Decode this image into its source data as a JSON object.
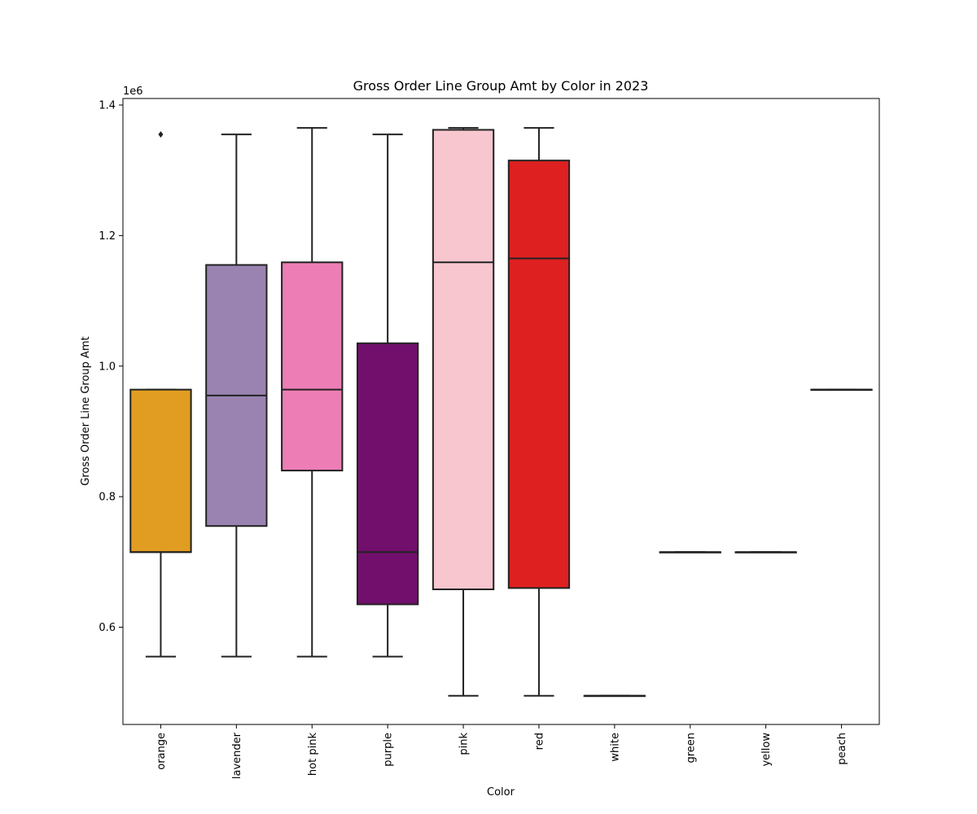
{
  "chart_data": {
    "type": "box",
    "title": "Gross Order Line Group Amt by Color in 2023",
    "xlabel": "Color",
    "ylabel": "Gross Order Line Group Amt",
    "y_multiplier_label": "1e6",
    "y_scale_factor": 1000000,
    "ylim": [
      0.451,
      1.41
    ],
    "yticks": [
      0.6,
      0.8,
      1.0,
      1.2,
      1.4
    ],
    "ytick_labels": [
      "0.6",
      "0.8",
      "1.0",
      "1.2",
      "1.4"
    ],
    "grid": false,
    "legend": "none",
    "categories": [
      "orange",
      "lavender",
      "hot pink",
      "purple",
      "pink",
      "red",
      "white",
      "green",
      "yellow",
      "peach"
    ],
    "boxes": [
      {
        "category": "orange",
        "color": "#e09d21",
        "whisker_low": 0.555,
        "q1": 0.715,
        "median": 0.715,
        "q3": 0.964,
        "whisker_high": 0.964,
        "outliers": [
          1.355
        ]
      },
      {
        "category": "lavender",
        "color": "#9a83b1",
        "whisker_low": 0.555,
        "q1": 0.755,
        "median": 0.955,
        "q3": 1.155,
        "whisker_high": 1.355,
        "outliers": []
      },
      {
        "category": "hot pink",
        "color": "#ec7db5",
        "whisker_low": 0.555,
        "q1": 0.84,
        "median": 0.964,
        "q3": 1.159,
        "whisker_high": 1.365,
        "outliers": []
      },
      {
        "category": "purple",
        "color": "#720f6d",
        "whisker_low": 0.555,
        "q1": 0.635,
        "median": 0.715,
        "q3": 1.035,
        "whisker_high": 1.355,
        "outliers": []
      },
      {
        "category": "pink",
        "color": "#f7c6cf",
        "whisker_low": 0.495,
        "q1": 0.658,
        "median": 1.159,
        "q3": 1.362,
        "whisker_high": 1.365,
        "outliers": []
      },
      {
        "category": "red",
        "color": "#de2021",
        "whisker_low": 0.495,
        "q1": 0.66,
        "median": 1.165,
        "q3": 1.315,
        "whisker_high": 1.365,
        "outliers": []
      },
      {
        "category": "white",
        "color": "#ffffff",
        "whisker_low": 0.495,
        "q1": 0.495,
        "median": 0.495,
        "q3": 0.495,
        "whisker_high": 0.495,
        "outliers": []
      },
      {
        "category": "green",
        "color": "#2e9e2e",
        "whisker_low": 0.715,
        "q1": 0.715,
        "median": 0.715,
        "q3": 0.715,
        "whisker_high": 0.715,
        "outliers": []
      },
      {
        "category": "yellow",
        "color": "#e8e81c",
        "whisker_low": 0.715,
        "q1": 0.715,
        "median": 0.715,
        "q3": 0.715,
        "whisker_high": 0.715,
        "outliers": []
      },
      {
        "category": "peach",
        "color": "#f2bf9d",
        "whisker_low": 0.964,
        "q1": 0.964,
        "median": 0.964,
        "q3": 0.964,
        "whisker_high": 0.964,
        "outliers": []
      }
    ]
  }
}
